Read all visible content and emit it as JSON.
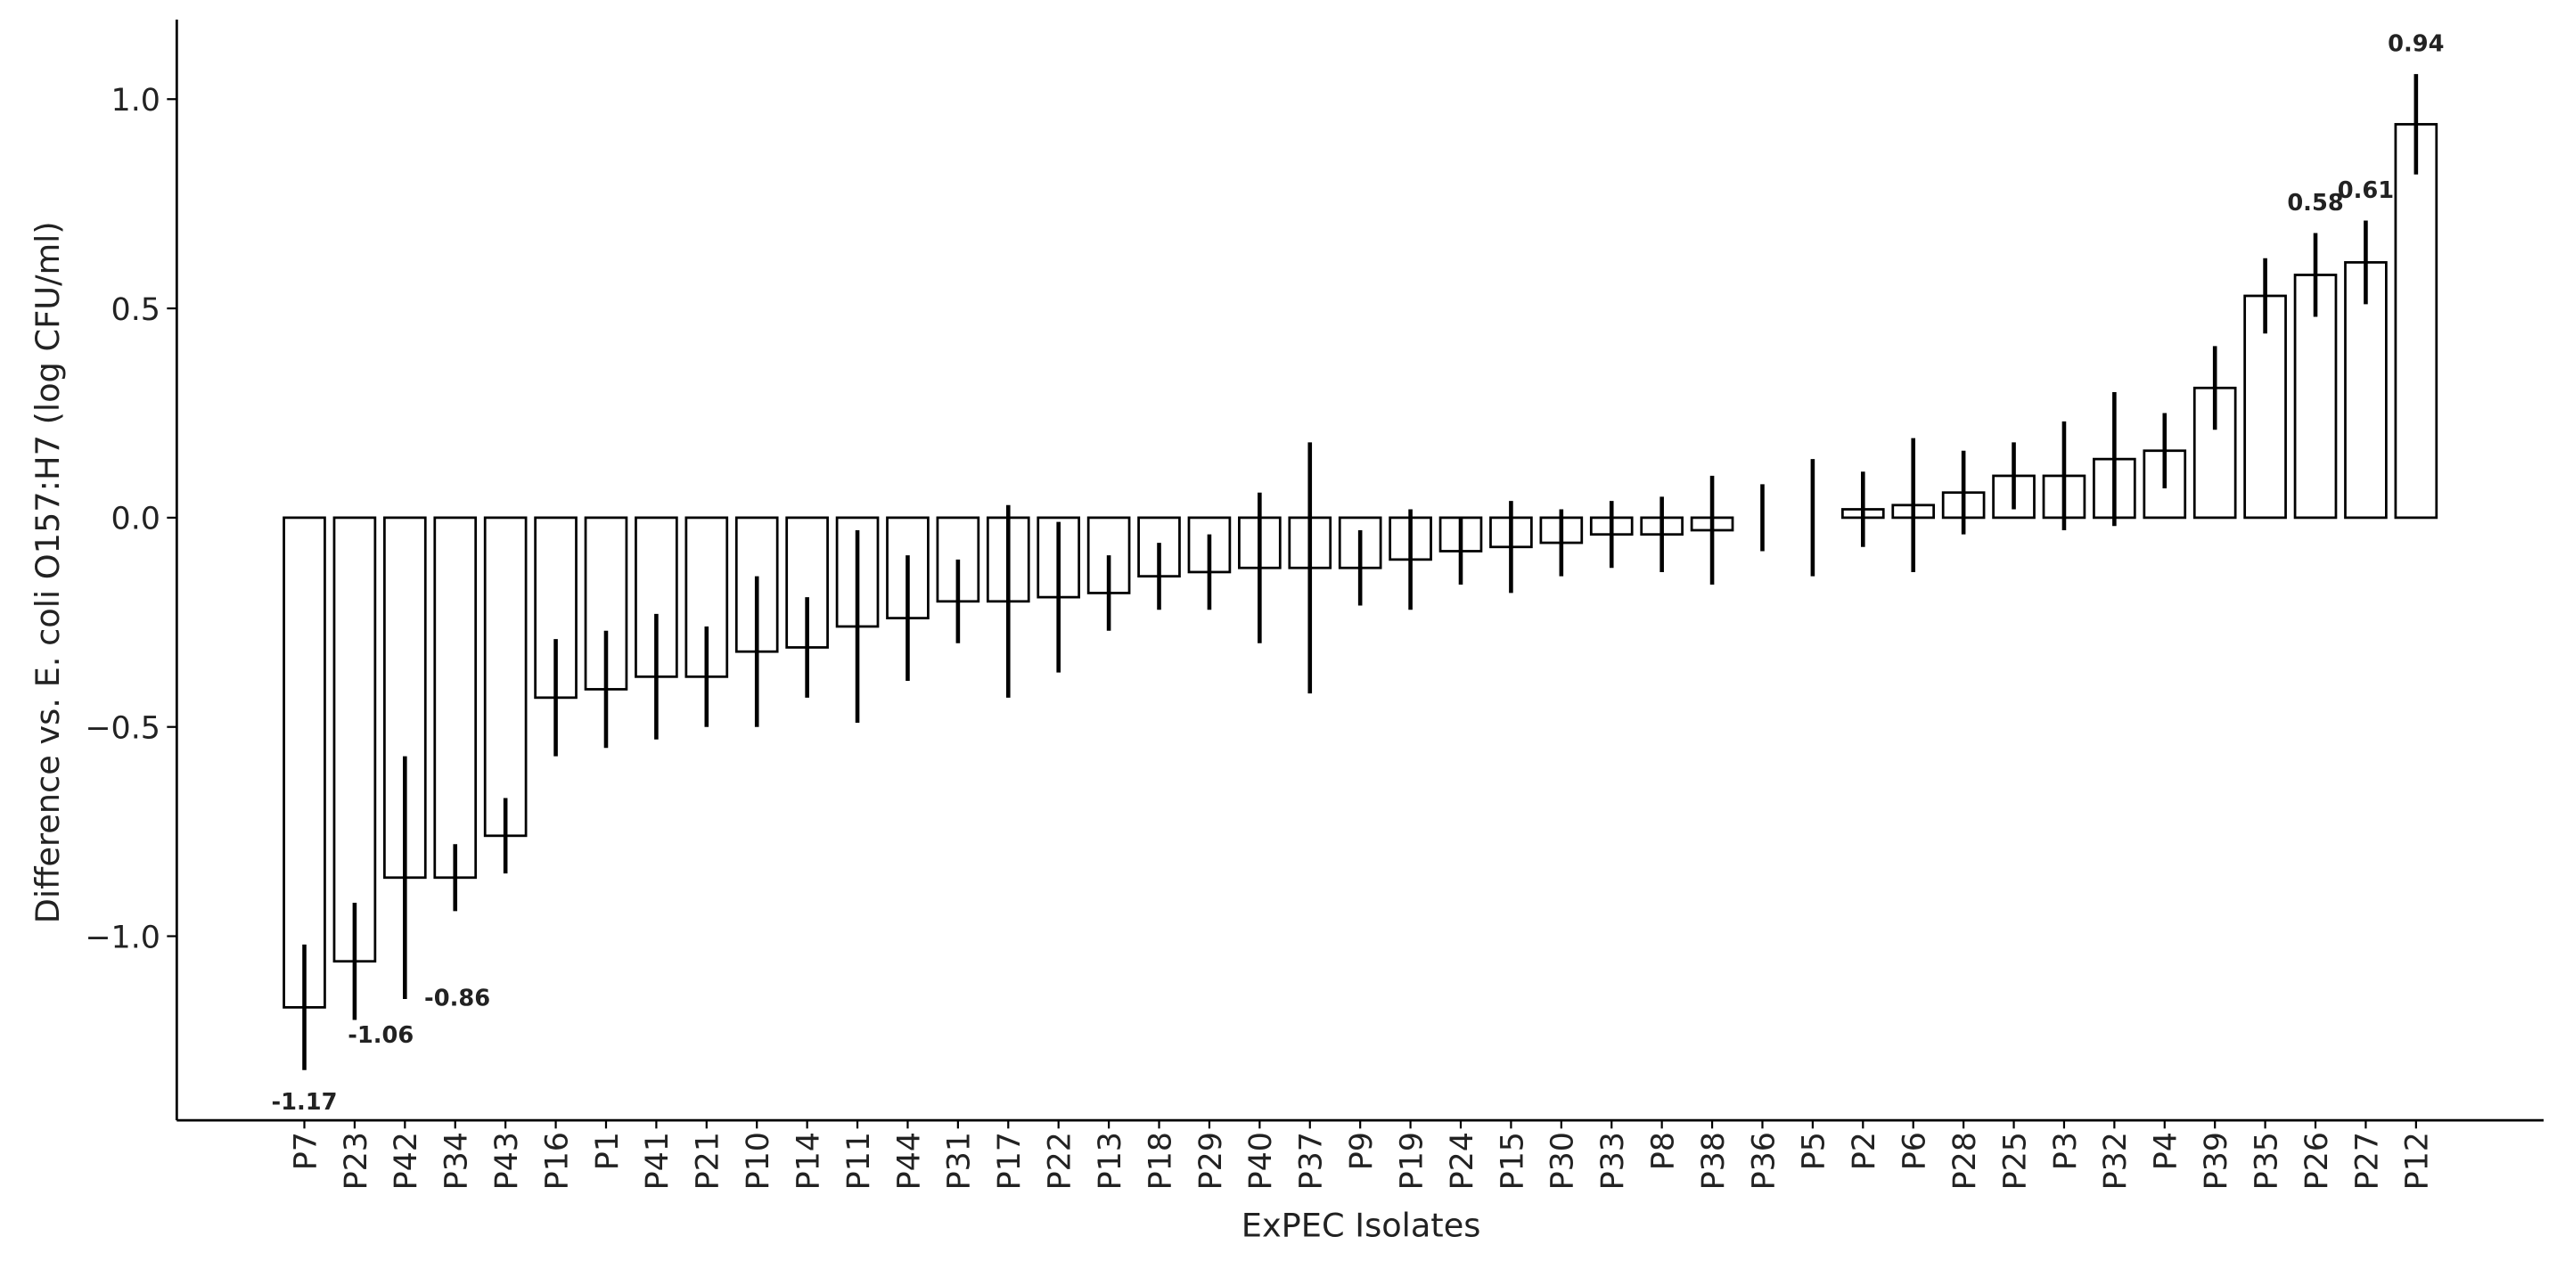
{
  "chart_data": {
    "type": "bar",
    "xlabel": "ExPEC Isolates",
    "ylabel": "Difference vs. E. coli O157:H7 (log CFU/ml)",
    "categories": [
      "P7",
      "P23",
      "P42",
      "P34",
      "P43",
      "P16",
      "P1",
      "P41",
      "P21",
      "P10",
      "P14",
      "P11",
      "P44",
      "P31",
      "P17",
      "P22",
      "P13",
      "P18",
      "P29",
      "P40",
      "P37",
      "P9",
      "P19",
      "P24",
      "P15",
      "P30",
      "P33",
      "P8",
      "P38",
      "P36",
      "P5",
      "P2",
      "P6",
      "P28",
      "P25",
      "P3",
      "P32",
      "P4",
      "P39",
      "P35",
      "P26",
      "P27",
      "P12"
    ],
    "values": [
      -1.17,
      -1.06,
      -0.86,
      -0.86,
      -0.76,
      -0.43,
      -0.41,
      -0.38,
      -0.38,
      -0.32,
      -0.31,
      -0.26,
      -0.24,
      -0.2,
      -0.2,
      -0.19,
      -0.18,
      -0.14,
      -0.13,
      -0.12,
      -0.12,
      -0.12,
      -0.1,
      -0.08,
      -0.07,
      -0.06,
      -0.04,
      -0.04,
      -0.03,
      0.0,
      0.0,
      0.02,
      0.03,
      0.06,
      0.1,
      0.1,
      0.14,
      0.16,
      0.31,
      0.53,
      0.58,
      0.61,
      0.94
    ],
    "errors": [
      0.15,
      0.14,
      0.29,
      0.08,
      0.09,
      0.14,
      0.14,
      0.15,
      0.12,
      0.18,
      0.12,
      0.23,
      0.15,
      0.1,
      0.23,
      0.18,
      0.09,
      0.08,
      0.09,
      0.18,
      0.3,
      0.09,
      0.12,
      0.08,
      0.11,
      0.08,
      0.08,
      0.09,
      0.13,
      0.08,
      0.14,
      0.09,
      0.16,
      0.1,
      0.08,
      0.13,
      0.16,
      0.09,
      0.1,
      0.09,
      0.1,
      0.1,
      0.12
    ],
    "value_labels": [
      "-1.17",
      "-1.06",
      "-0.86",
      null,
      null,
      null,
      null,
      null,
      null,
      null,
      null,
      null,
      null,
      null,
      null,
      null,
      null,
      null,
      null,
      null,
      null,
      null,
      null,
      null,
      null,
      null,
      null,
      null,
      null,
      null,
      null,
      null,
      null,
      null,
      null,
      null,
      null,
      null,
      null,
      null,
      "0.58",
      "0.61",
      "0.94"
    ],
    "color": "#ffffff",
    "edgecolor": "#000000",
    "ylim": [
      -1.44,
      1.19
    ],
    "yticks": [
      {
        "value": -1.0,
        "label": "−1.0"
      },
      {
        "value": -0.5,
        "label": "−0.5"
      },
      {
        "value": 0.0,
        "label": "0.0"
      },
      {
        "value": 0.5,
        "label": "0.5"
      },
      {
        "value": 1.0,
        "label": "1.0"
      }
    ],
    "grid": false
  }
}
